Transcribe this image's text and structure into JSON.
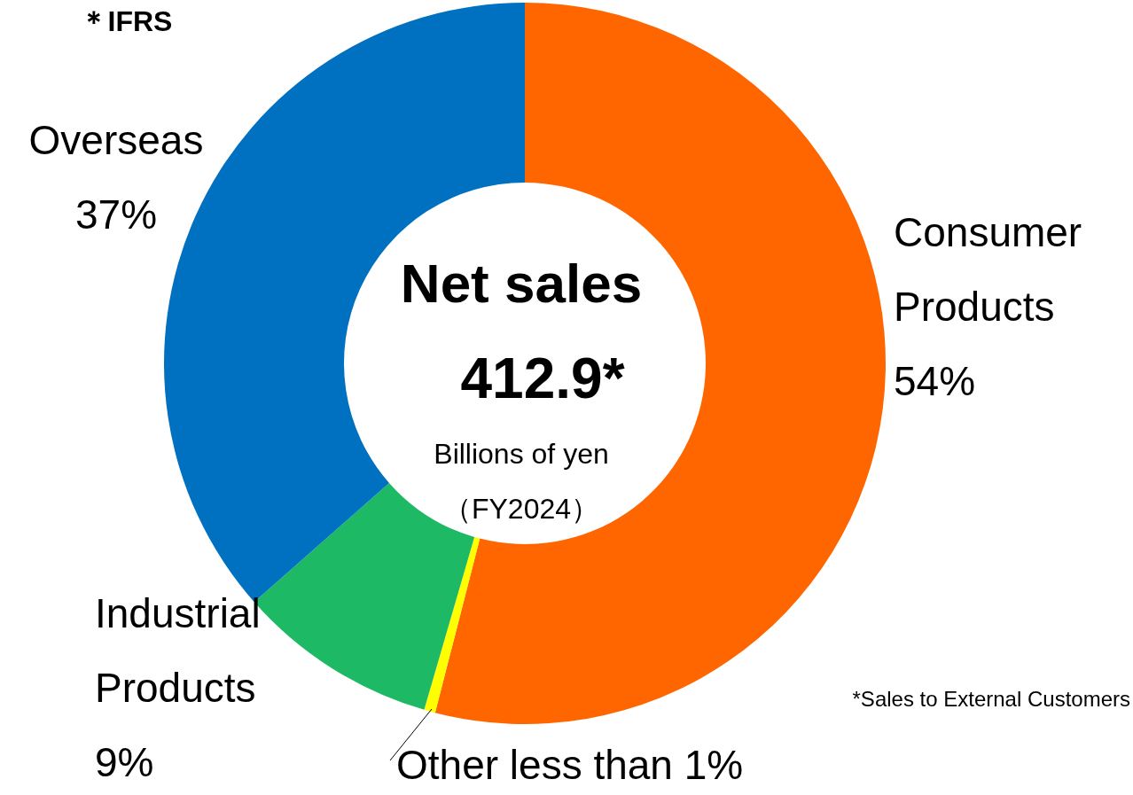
{
  "chart_data": {
    "type": "donut",
    "title": "Net sales",
    "categories": [
      "Consumer Products",
      "Other",
      "Industrial Products",
      "Overseas"
    ],
    "values": [
      54,
      0.5,
      9,
      36.5
    ],
    "value_labels": [
      "54%",
      "less than 1%",
      "9%",
      "37%"
    ],
    "colors": [
      "#ff6600",
      "#ffff00",
      "#1eb964",
      "#0070c0"
    ],
    "annotations": [
      "412.9*",
      "Billions of yen",
      "（FY2024）",
      "＊IFRS",
      "*Sales to External Customers"
    ]
  }
}
